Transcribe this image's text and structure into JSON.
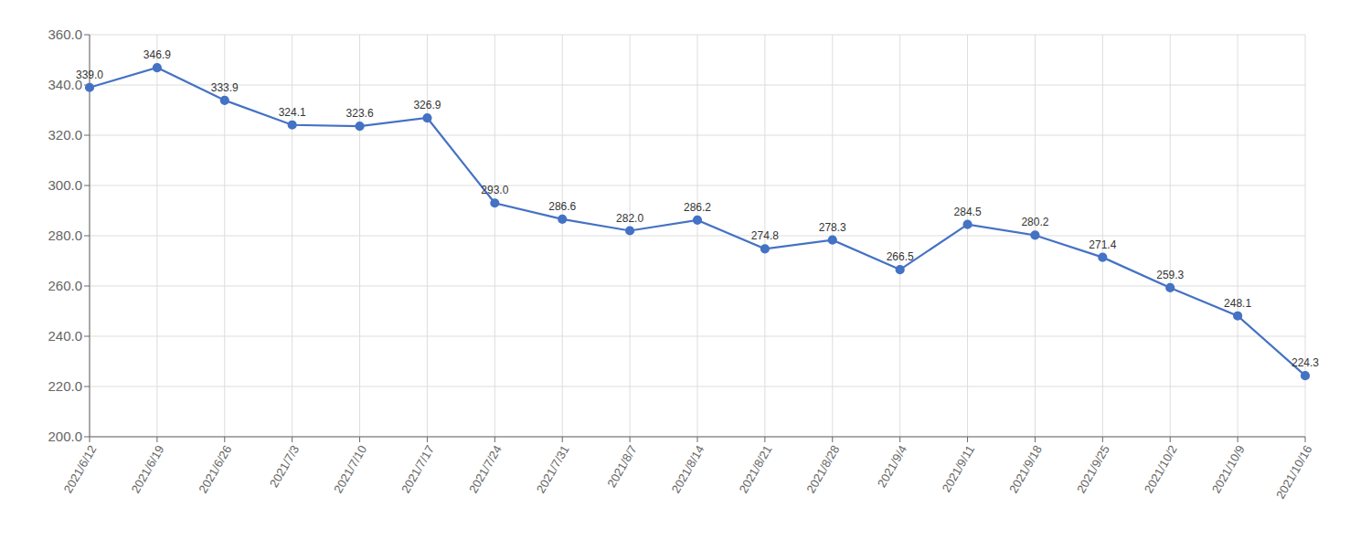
{
  "chart_data": {
    "type": "line",
    "categories": [
      "2021/6/12",
      "2021/6/19",
      "2021/6/26",
      "2021/7/3",
      "2021/7/10",
      "2021/7/17",
      "2021/7/24",
      "2021/7/31",
      "2021/8/7",
      "2021/8/14",
      "2021/8/21",
      "2021/8/28",
      "2021/9/4",
      "2021/9/11",
      "2021/9/18",
      "2021/9/25",
      "2021/10/2",
      "2021/10/9",
      "2021/10/16"
    ],
    "values": [
      339.0,
      346.9,
      333.9,
      324.1,
      323.6,
      326.9,
      293.0,
      286.6,
      282.0,
      286.2,
      274.8,
      278.3,
      266.5,
      284.5,
      280.2,
      271.4,
      259.3,
      248.1,
      224.3
    ],
    "value_labels": [
      "339.0",
      "346.9",
      "333.9",
      "324.1",
      "323.6",
      "326.9",
      "293.0",
      "286.6",
      "282.0",
      "286.2",
      "274.8",
      "278.3",
      "266.5",
      "284.5",
      "280.2",
      "271.4",
      "259.3",
      "248.1",
      "224.3"
    ],
    "color": "#4472C4",
    "marker": "circle",
    "ylim": [
      200.0,
      360.0
    ],
    "yticks": [
      {
        "value": 200,
        "label": "200.0"
      },
      {
        "value": 220,
        "label": "220.0"
      },
      {
        "value": 240,
        "label": "240.0"
      },
      {
        "value": 260,
        "label": "260.0"
      },
      {
        "value": 280,
        "label": "280.0"
      },
      {
        "value": 300,
        "label": "300.0"
      },
      {
        "value": 320,
        "label": "320.0"
      },
      {
        "value": 340,
        "label": "340.0"
      },
      {
        "value": 360,
        "label": "360.0"
      }
    ],
    "grid": true,
    "data_labels": true
  }
}
